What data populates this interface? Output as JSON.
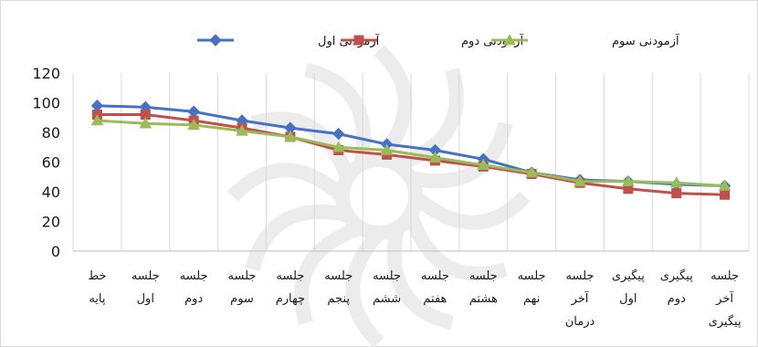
{
  "chart_data": {
    "type": "line",
    "title": "",
    "xlabel": "",
    "ylabel": "",
    "ylim": [
      0,
      120
    ],
    "yticks": [
      0,
      20,
      40,
      60,
      80,
      100,
      120
    ],
    "grid": "vertical",
    "legend_position": "top",
    "categories": [
      [
        "خط",
        "پایه"
      ],
      [
        "جلسه",
        "اول"
      ],
      [
        "جلسه",
        "دوم"
      ],
      [
        "جلسه",
        "سوم"
      ],
      [
        "جلسه",
        "چهارم"
      ],
      [
        "جلسه",
        "پنجم"
      ],
      [
        "جلسه",
        "ششم"
      ],
      [
        "جلسه",
        "هفتم"
      ],
      [
        "جلسه",
        "هشتم"
      ],
      [
        "جلسه",
        "نهم"
      ],
      [
        "جلسه",
        "آخر",
        "درمان"
      ],
      [
        "پیگیری",
        "اول"
      ],
      [
        "پیگیری",
        "دوم"
      ],
      [
        "جلسه",
        "آخر",
        "پیگیری"
      ]
    ],
    "series": [
      {
        "name": "آزمودنی اول",
        "color": "#4472C4",
        "marker": "diamond",
        "values": [
          98,
          97,
          94,
          88,
          83,
          79,
          72,
          68,
          62,
          53,
          48,
          47,
          45,
          44
        ]
      },
      {
        "name": "آزمودنی دوم",
        "color": "#C0504D",
        "marker": "square",
        "values": [
          92,
          92,
          88,
          83,
          77,
          68,
          65,
          61,
          57,
          52,
          46,
          42,
          39,
          38
        ]
      },
      {
        "name": "آزمودنی سوم",
        "color": "#9BBB59",
        "marker": "triangle",
        "values": [
          88,
          86,
          85,
          81,
          77,
          70,
          68,
          63,
          58,
          53,
          47,
          47,
          46,
          44
        ]
      }
    ]
  }
}
